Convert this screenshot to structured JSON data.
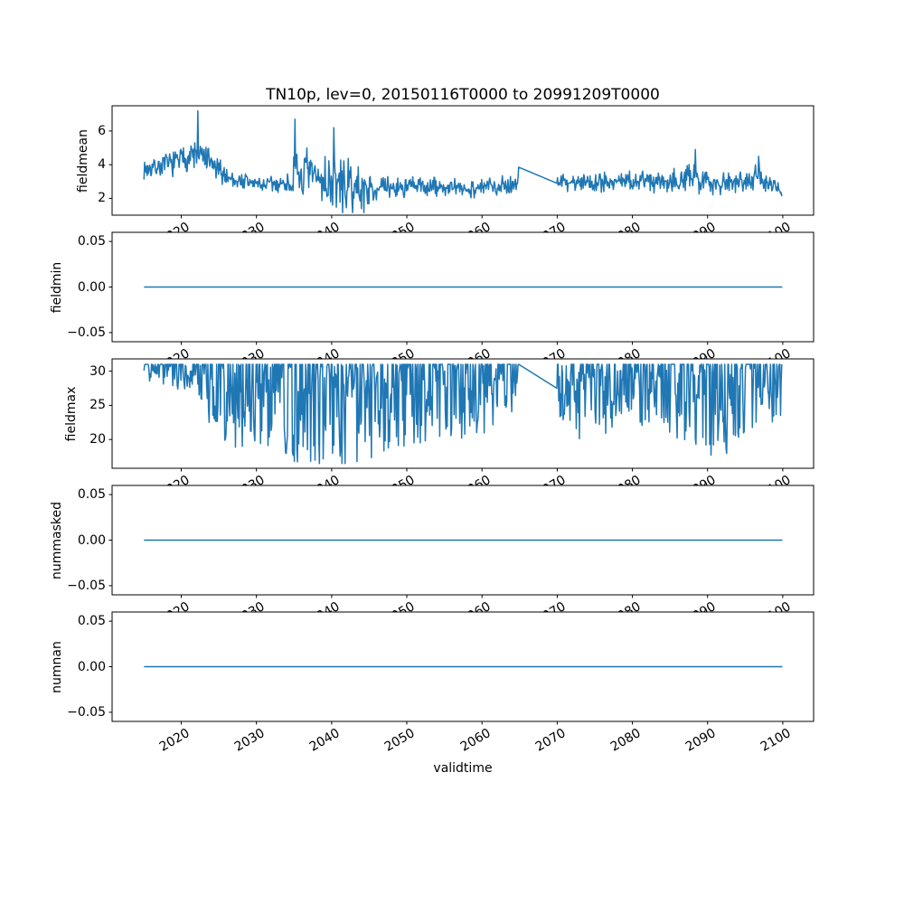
{
  "figure": {
    "title": "TN10p, lev=0, 20150116T0000 to 20991209T0000",
    "xlabel": "validtime",
    "background_color": "#ffffff",
    "axis_color": "#000000",
    "line_color": "#1f77b4",
    "xlim": [
      2010.8,
      2104.1
    ],
    "x_data_range": [
      2015.04,
      2099.94
    ],
    "data_gap_years": [
      2064.9,
      2069.9
    ],
    "xticks": [
      {
        "label": "2020",
        "value": 2020
      },
      {
        "label": "2030",
        "value": 2030
      },
      {
        "label": "2040",
        "value": 2040
      },
      {
        "label": "2050",
        "value": 2050
      },
      {
        "label": "2060",
        "value": 2060
      },
      {
        "label": "2070",
        "value": 2070
      },
      {
        "label": "2080",
        "value": 2080
      },
      {
        "label": "2090",
        "value": 2090
      },
      {
        "label": "2100",
        "value": 2100
      }
    ]
  },
  "chart_data": [
    {
      "type": "line",
      "name": "fieldmean",
      "ylabel": "fieldmean",
      "ylim": [
        1.0,
        7.5
      ],
      "yticks": [
        {
          "label": "2",
          "value": 2
        },
        {
          "label": "4",
          "value": 4
        },
        {
          "label": "6",
          "value": 6
        }
      ],
      "series": {
        "kind": "noisy",
        "sample_step_years": 0.08333,
        "seed": 7,
        "value_clamp": [
          1.15,
          7.3
        ],
        "envelope_year_mean_amp": [
          [
            2015.0,
            3.7,
            0.45
          ],
          [
            2019.0,
            4.1,
            0.6
          ],
          [
            2021.5,
            4.6,
            0.8
          ],
          [
            2023.0,
            4.4,
            0.8
          ],
          [
            2025.0,
            3.6,
            0.6
          ],
          [
            2027.0,
            3.1,
            0.5
          ],
          [
            2031.0,
            2.8,
            0.45
          ],
          [
            2034.7,
            2.9,
            0.5
          ],
          [
            2035.0,
            3.4,
            1.4
          ],
          [
            2038.0,
            3.2,
            1.4
          ],
          [
            2041.0,
            2.8,
            1.4
          ],
          [
            2044.0,
            2.5,
            1.1
          ],
          [
            2046.0,
            2.6,
            0.55
          ],
          [
            2052.0,
            2.7,
            0.55
          ],
          [
            2058.0,
            2.55,
            0.45
          ],
          [
            2064.8,
            2.9,
            0.5
          ],
          [
            2069.9,
            2.95,
            0.4
          ],
          [
            2075.0,
            3.0,
            0.55
          ],
          [
            2080.0,
            3.0,
            0.6
          ],
          [
            2085.0,
            3.1,
            0.6
          ],
          [
            2088.0,
            3.2,
            0.7
          ],
          [
            2092.0,
            2.9,
            0.6
          ],
          [
            2096.5,
            3.3,
            0.7
          ],
          [
            2099.9,
            2.4,
            0.3
          ]
        ],
        "notable_points_year_value": [
          [
            2022.2,
            7.2
          ],
          [
            2035.1,
            6.7
          ],
          [
            2040.3,
            6.2
          ],
          [
            2064.85,
            3.85
          ],
          [
            2069.95,
            2.9
          ],
          [
            2088.4,
            4.9
          ],
          [
            2096.8,
            4.5
          ]
        ]
      }
    },
    {
      "type": "line",
      "name": "fieldmin",
      "ylabel": "fieldmin",
      "ylim": [
        -0.06,
        0.06
      ],
      "yticks": [
        {
          "label": "0.05",
          "value": 0.05
        },
        {
          "label": "0.00",
          "value": 0.0
        },
        {
          "label": "−0.05",
          "value": -0.05
        }
      ],
      "series": {
        "kind": "constant",
        "value": 0
      }
    },
    {
      "type": "line",
      "name": "fieldmax",
      "ylabel": "fieldmax",
      "ylim": [
        15.8,
        31.8
      ],
      "yticks": [
        {
          "label": "20",
          "value": 20
        },
        {
          "label": "25",
          "value": 25
        },
        {
          "label": "30",
          "value": 30
        }
      ],
      "series": {
        "kind": "capped",
        "sample_step_years": 0.08333,
        "seed": 13,
        "cap": 31,
        "clamp_min": 16.5,
        "dip_envelope_year_depth": [
          [
            2015.0,
            3
          ],
          [
            2022.0,
            4
          ],
          [
            2024.0,
            10
          ],
          [
            2028.0,
            13
          ],
          [
            2031.0,
            12
          ],
          [
            2033.0,
            13
          ],
          [
            2035.0,
            15
          ],
          [
            2040.0,
            15.5
          ],
          [
            2045.0,
            15
          ],
          [
            2048.0,
            13
          ],
          [
            2052.0,
            12
          ],
          [
            2056.0,
            11
          ],
          [
            2060.0,
            11
          ],
          [
            2064.9,
            6
          ],
          [
            2069.9,
            9
          ],
          [
            2073.0,
            11
          ],
          [
            2077.0,
            10
          ],
          [
            2081.0,
            9
          ],
          [
            2085.0,
            10
          ],
          [
            2089.0,
            14
          ],
          [
            2093.0,
            13
          ],
          [
            2097.0,
            9
          ],
          [
            2099.9,
            8
          ]
        ],
        "notable_points_year_value": [
          [
            2064.85,
            31
          ],
          [
            2069.95,
            27.5
          ]
        ]
      }
    },
    {
      "type": "line",
      "name": "nummasked",
      "ylabel": "nummasked",
      "ylim": [
        -0.06,
        0.06
      ],
      "yticks": [
        {
          "label": "0.05",
          "value": 0.05
        },
        {
          "label": "0.00",
          "value": 0.0
        },
        {
          "label": "−0.05",
          "value": -0.05
        }
      ],
      "series": {
        "kind": "constant",
        "value": 0
      }
    },
    {
      "type": "line",
      "name": "numnan",
      "ylabel": "numnan",
      "ylim": [
        -0.06,
        0.06
      ],
      "yticks": [
        {
          "label": "0.05",
          "value": 0.05
        },
        {
          "label": "0.00",
          "value": 0.0
        },
        {
          "label": "−0.05",
          "value": -0.05
        }
      ],
      "series": {
        "kind": "constant",
        "value": 0
      }
    }
  ]
}
